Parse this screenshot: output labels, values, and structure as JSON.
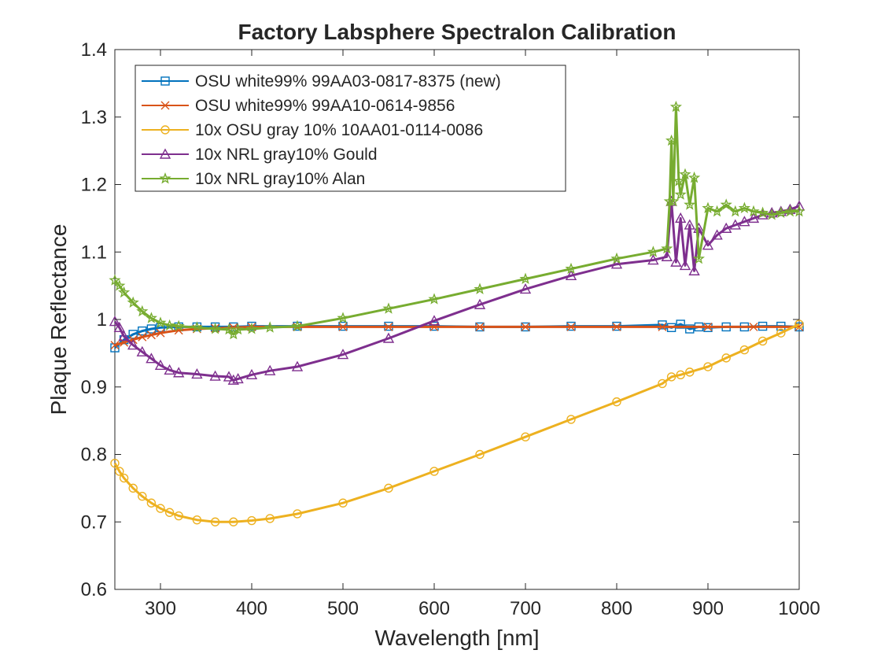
{
  "colors": {
    "background": "#ffffff",
    "axes": "#262626",
    "text": "#262626"
  },
  "chart_data": {
    "type": "line",
    "title": "Factory Labsphere Spectralon Calibration",
    "xlabel": "Wavelength [nm]",
    "ylabel": "Plaque Reflectance",
    "xlim": [
      250,
      1000
    ],
    "ylim": [
      0.6,
      1.4
    ],
    "xticks": [
      300,
      400,
      500,
      600,
      700,
      800,
      900,
      1000
    ],
    "yticks": [
      0.6,
      0.7,
      0.8,
      0.9,
      1.0,
      1.1,
      1.2,
      1.3,
      1.4
    ],
    "xtick_labels": [
      "300",
      "400",
      "500",
      "600",
      "700",
      "800",
      "900",
      "1000"
    ],
    "ytick_labels": [
      "0.6",
      "0.7",
      "0.8",
      "0.9",
      "1",
      "1.1",
      "1.2",
      "1.3",
      "1.4"
    ],
    "grid": false,
    "box": true,
    "legend_position": "top-left",
    "series": [
      {
        "name": "OSU white99% 99AA03-0817-8375 (new)",
        "color": "#0072BD",
        "marker": "square",
        "x": [
          250,
          260,
          270,
          280,
          290,
          300,
          320,
          340,
          360,
          380,
          400,
          450,
          500,
          550,
          600,
          650,
          700,
          750,
          800,
          850,
          860,
          870,
          880,
          890,
          900,
          920,
          940,
          960,
          980,
          1000
        ],
        "y": [
          0.958,
          0.97,
          0.978,
          0.983,
          0.986,
          0.988,
          0.989,
          0.989,
          0.989,
          0.989,
          0.99,
          0.99,
          0.99,
          0.99,
          0.99,
          0.989,
          0.989,
          0.99,
          0.99,
          0.992,
          0.988,
          0.993,
          0.986,
          0.989,
          0.988,
          0.989,
          0.989,
          0.99,
          0.99,
          0.989
        ]
      },
      {
        "name": "OSU white99% 99AA10-0614-9856",
        "color": "#D95319",
        "marker": "x",
        "x": [
          250,
          260,
          270,
          280,
          290,
          300,
          320,
          340,
          360,
          380,
          400,
          450,
          500,
          550,
          600,
          650,
          700,
          750,
          800,
          850,
          900,
          950,
          1000
        ],
        "y": [
          0.962,
          0.966,
          0.97,
          0.974,
          0.977,
          0.98,
          0.984,
          0.986,
          0.987,
          0.988,
          0.989,
          0.989,
          0.989,
          0.989,
          0.989,
          0.989,
          0.989,
          0.989,
          0.989,
          0.989,
          0.989,
          0.989,
          0.989
        ]
      },
      {
        "name": "10x OSU gray 10% 10AA01-0114-0086",
        "color": "#EDB120",
        "marker": "circle",
        "x": [
          250,
          255,
          260,
          270,
          280,
          290,
          300,
          310,
          320,
          340,
          360,
          380,
          400,
          420,
          450,
          500,
          550,
          600,
          650,
          700,
          750,
          800,
          850,
          860,
          870,
          880,
          900,
          920,
          940,
          960,
          980,
          1000
        ],
        "y": [
          0.787,
          0.775,
          0.765,
          0.75,
          0.738,
          0.728,
          0.72,
          0.714,
          0.709,
          0.703,
          0.7,
          0.7,
          0.702,
          0.705,
          0.712,
          0.728,
          0.75,
          0.775,
          0.8,
          0.826,
          0.852,
          0.878,
          0.905,
          0.915,
          0.918,
          0.922,
          0.93,
          0.943,
          0.955,
          0.968,
          0.98,
          0.993
        ]
      },
      {
        "name": "10x NRL gray10% Gould",
        "color": "#7E2F8E",
        "marker": "triangle",
        "x": [
          250,
          255,
          260,
          270,
          280,
          290,
          300,
          310,
          320,
          340,
          360,
          375,
          380,
          385,
          400,
          420,
          450,
          500,
          550,
          600,
          650,
          700,
          750,
          800,
          840,
          855,
          860,
          865,
          870,
          875,
          880,
          885,
          890,
          900,
          910,
          920,
          930,
          940,
          950,
          960,
          970,
          980,
          990,
          1000
        ],
        "y": [
          0.997,
          0.988,
          0.975,
          0.962,
          0.952,
          0.942,
          0.932,
          0.925,
          0.921,
          0.919,
          0.916,
          0.915,
          0.91,
          0.912,
          0.918,
          0.924,
          0.93,
          0.948,
          0.972,
          0.998,
          1.022,
          1.045,
          1.065,
          1.082,
          1.088,
          1.093,
          1.175,
          1.085,
          1.15,
          1.08,
          1.14,
          1.072,
          1.135,
          1.11,
          1.125,
          1.135,
          1.14,
          1.145,
          1.15,
          1.155,
          1.158,
          1.16,
          1.163,
          1.168
        ]
      },
      {
        "name": "10x NRL gray10% Alan",
        "color": "#77AC30",
        "marker": "pentagram",
        "x": [
          250,
          255,
          260,
          270,
          280,
          290,
          300,
          310,
          320,
          340,
          360,
          375,
          380,
          385,
          400,
          420,
          450,
          500,
          550,
          600,
          650,
          700,
          750,
          800,
          840,
          855,
          858,
          860,
          862,
          865,
          868,
          870,
          875,
          880,
          885,
          890,
          900,
          910,
          920,
          930,
          940,
          950,
          960,
          970,
          980,
          990,
          1000
        ],
        "y": [
          1.058,
          1.05,
          1.04,
          1.025,
          1.012,
          1.002,
          0.995,
          0.991,
          0.99,
          0.988,
          0.986,
          0.985,
          0.978,
          0.985,
          0.986,
          0.988,
          0.99,
          1.002,
          1.016,
          1.03,
          1.045,
          1.06,
          1.075,
          1.09,
          1.1,
          1.105,
          1.175,
          1.265,
          1.175,
          1.315,
          1.205,
          1.185,
          1.215,
          1.17,
          1.21,
          1.09,
          1.165,
          1.16,
          1.17,
          1.16,
          1.165,
          1.16,
          1.158,
          1.155,
          1.158,
          1.16,
          1.16
        ]
      }
    ]
  }
}
